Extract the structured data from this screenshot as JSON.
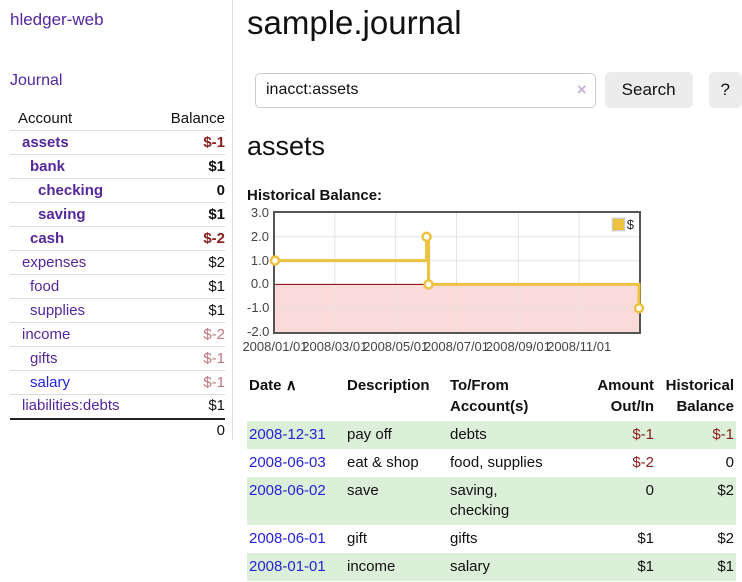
{
  "app": {
    "title": "hledger-web"
  },
  "sidebar": {
    "journal_link": "Journal",
    "accounts_table": {
      "headers": {
        "account": "Account",
        "balance": "Balance"
      },
      "rows": [
        {
          "account": "assets",
          "balance": "$-1",
          "indent": 1,
          "bold": true,
          "balance_style": "neg-strong"
        },
        {
          "account": "bank",
          "balance": "$1",
          "indent": 2,
          "bold": true,
          "balance_style": "normal"
        },
        {
          "account": "checking",
          "balance": "0",
          "indent": 3,
          "bold": true,
          "balance_style": "normal"
        },
        {
          "account": "saving",
          "balance": "$1",
          "indent": 3,
          "bold": true,
          "balance_style": "normal"
        },
        {
          "account": "cash",
          "balance": "$-2",
          "indent": 2,
          "bold": true,
          "balance_style": "neg-strong"
        },
        {
          "account": "expenses",
          "balance": "$2",
          "indent": 1,
          "bold": false,
          "balance_style": "normal"
        },
        {
          "account": "food",
          "balance": "$1",
          "indent": 2,
          "bold": false,
          "balance_style": "normal"
        },
        {
          "account": "supplies",
          "balance": "$1",
          "indent": 2,
          "bold": false,
          "balance_style": "normal"
        },
        {
          "account": "income",
          "balance": "$-2",
          "indent": 1,
          "bold": false,
          "balance_style": "neg-muted"
        },
        {
          "account": "gifts",
          "balance": "$-1",
          "indent": 2,
          "bold": false,
          "balance_style": "neg-muted"
        },
        {
          "account": "salary",
          "balance": "$-1",
          "indent": 2,
          "bold": false,
          "balance_style": "neg-muted",
          "link_color": "blue"
        },
        {
          "account": "liabilities:debts",
          "balance": "$1",
          "indent": 1,
          "bold": false,
          "balance_style": "normal"
        }
      ],
      "total": "0"
    }
  },
  "main": {
    "title": "sample.journal",
    "search": {
      "value": "inacct:assets",
      "clear_icon": "×",
      "search_button": "Search",
      "help_button": "?"
    },
    "account_heading": "assets",
    "chart_heading": "Historical Balance:"
  },
  "chart_data": {
    "type": "line",
    "title": "Historical Balance:",
    "step": true,
    "series": [
      {
        "name": "$",
        "color": "#EDC240",
        "points": [
          [
            "2008-01-01",
            1
          ],
          [
            "2008-06-01",
            2
          ],
          [
            "2008-06-03",
            0
          ],
          [
            "2008-12-31",
            -1
          ]
        ]
      }
    ],
    "x_range": [
      "2008-01-01",
      "2008-12-31"
    ],
    "x_ticks": [
      "2008/01/01",
      "2008/03/01",
      "2008/05/01",
      "2008/07/01",
      "2008/09/01",
      "2008/11/01"
    ],
    "y_ticks": [
      "3.0",
      "2.0",
      "1.0",
      "0.0",
      "-1.0",
      "-2.0"
    ],
    "ylim": [
      -2,
      3
    ],
    "grid": true,
    "grid_color": "#e4e4e4",
    "zero_line_color": "#8b0000",
    "negative_region_color": "#fbdada",
    "legend_position": "top-right",
    "legend_label": "$"
  },
  "register_table": {
    "headers": {
      "date": "Date",
      "sort_arrow": "∧",
      "description": "Description",
      "accounts": "To/From\nAccount(s)",
      "amount": "Amount\nOut/In",
      "balance": "Historical\nBalance"
    },
    "rows": [
      {
        "date": "2008-12-31",
        "description": "pay off",
        "accounts": "debts",
        "amount": "$-1",
        "amount_neg": true,
        "balance": "$-1",
        "balance_neg": true,
        "striped": true
      },
      {
        "date": "2008-06-03",
        "description": "eat & shop",
        "accounts": "food, supplies",
        "amount": "$-2",
        "amount_neg": true,
        "balance": "0",
        "balance_neg": false,
        "striped": false
      },
      {
        "date": "2008-06-02",
        "description": "save",
        "accounts": "saving,\nchecking",
        "amount": "0",
        "amount_neg": false,
        "balance": "$2",
        "balance_neg": false,
        "striped": true
      },
      {
        "date": "2008-06-01",
        "description": "gift",
        "accounts": "gifts",
        "amount": "$1",
        "amount_neg": false,
        "balance": "$2",
        "balance_neg": false,
        "striped": false
      },
      {
        "date": "2008-01-01",
        "description": "income",
        "accounts": "salary",
        "amount": "$1",
        "amount_neg": false,
        "balance": "$1",
        "balance_neg": false,
        "striped": true
      }
    ]
  },
  "colors": {
    "purple_link": "#54279c",
    "blue_link": "#2323d9",
    "neg_strong": "#8b1c1c",
    "neg_muted": "#c0777b",
    "row_stripe_green": "#dcefd8",
    "series_yellow": "#EDC240",
    "plot_border": "#545454",
    "zero_line": "#8b0000",
    "negative_fill": "#fbdada"
  }
}
